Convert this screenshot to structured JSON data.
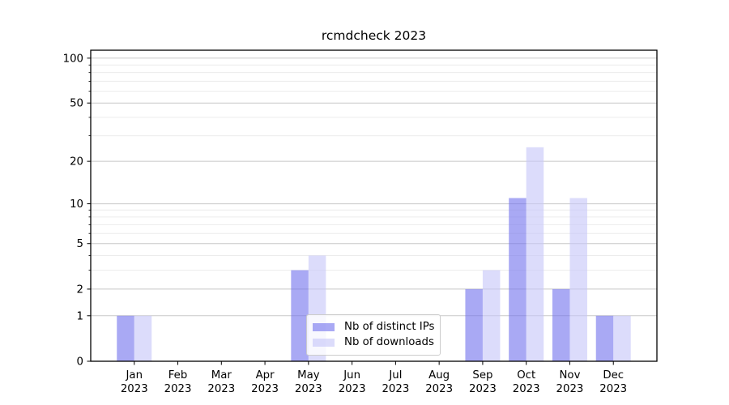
{
  "chart_data": {
    "type": "bar",
    "title": "rcmdcheck 2023",
    "categories": [
      "Jan",
      "Feb",
      "Mar",
      "Apr",
      "May",
      "Jun",
      "Jul",
      "Aug",
      "Sep",
      "Oct",
      "Nov",
      "Dec"
    ],
    "category_year": "2023",
    "series": [
      {
        "name": "Nb of distinct IPs",
        "color": "#7474ee",
        "alpha": 0.62,
        "values": [
          1,
          0,
          0,
          0,
          3,
          0,
          0,
          0,
          2,
          11,
          2,
          1
        ]
      },
      {
        "name": "Nb of downloads",
        "color": "#c6c6f8",
        "alpha": 0.62,
        "values": [
          1,
          0,
          0,
          0,
          4,
          0,
          0,
          0,
          3,
          25,
          11,
          1
        ]
      }
    ],
    "yscale": "log10(v+1)",
    "y_major_ticks": [
      0,
      1,
      2,
      5,
      10,
      20,
      50,
      100
    ],
    "y_minor_ticks": [
      3,
      4,
      6,
      7,
      8,
      9,
      30,
      40,
      60,
      70,
      80,
      90
    ],
    "ylim": [
      0,
      113
    ],
    "xlabel": "",
    "ylabel": "",
    "grid": true,
    "legend": {
      "position": "lower center",
      "entries": [
        "Nb of distinct IPs",
        "Nb of downloads"
      ]
    }
  },
  "colors": {
    "background": "#ffffff",
    "grid_major": "#c8c8c8",
    "grid_minor": "#ececec",
    "axis": "#000000",
    "text": "#000000",
    "legend_border": "#cccccc"
  }
}
